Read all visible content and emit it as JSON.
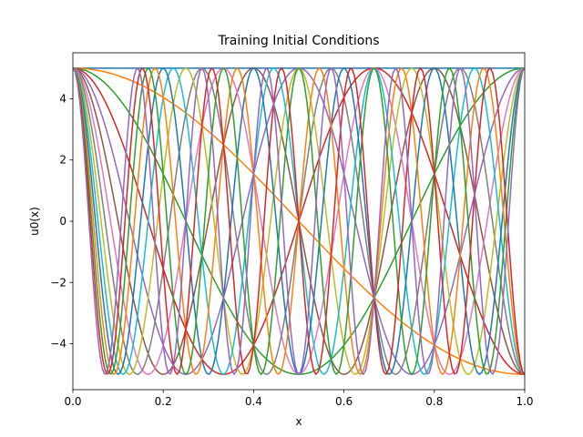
{
  "chart_data": {
    "type": "line",
    "title": "Training Initial Conditions",
    "xlabel": "x",
    "ylabel": "u0(x)",
    "xlim": [
      0.0,
      1.0
    ],
    "ylim": [
      -5.5,
      5.5
    ],
    "x_ticks": [
      0.0,
      0.2,
      0.4,
      0.6,
      0.8,
      1.0
    ],
    "x_tick_labels": [
      "0.0",
      "0.2",
      "0.4",
      "0.6",
      "0.8",
      "1.0"
    ],
    "y_ticks": [
      -4,
      -2,
      0,
      2,
      4
    ],
    "y_tick_labels": [
      "−4",
      "−2",
      "0",
      "2",
      "4"
    ],
    "grid": false,
    "legend": "none",
    "function": "u0(x) = 5 cos(k π x)",
    "x_samples": 200,
    "series": [
      {
        "k": 0,
        "color": "#1f77b4"
      },
      {
        "k": 1,
        "color": "#ff7f0e"
      },
      {
        "k": 2,
        "color": "#2ca02c"
      },
      {
        "k": 3,
        "color": "#d62728"
      },
      {
        "k": 4,
        "color": "#9467bd"
      },
      {
        "k": 5,
        "color": "#8c564b"
      },
      {
        "k": 6,
        "color": "#e377c2"
      },
      {
        "k": 7,
        "color": "#7f7f7f"
      },
      {
        "k": 8,
        "color": "#bcbd22"
      },
      {
        "k": 9,
        "color": "#17becf"
      },
      {
        "k": 10,
        "color": "#1f77b4"
      },
      {
        "k": 11,
        "color": "#ff7f0e"
      },
      {
        "k": 12,
        "color": "#2ca02c"
      },
      {
        "k": 13,
        "color": "#d62728"
      },
      {
        "k": 14,
        "color": "#9467bd"
      }
    ]
  }
}
